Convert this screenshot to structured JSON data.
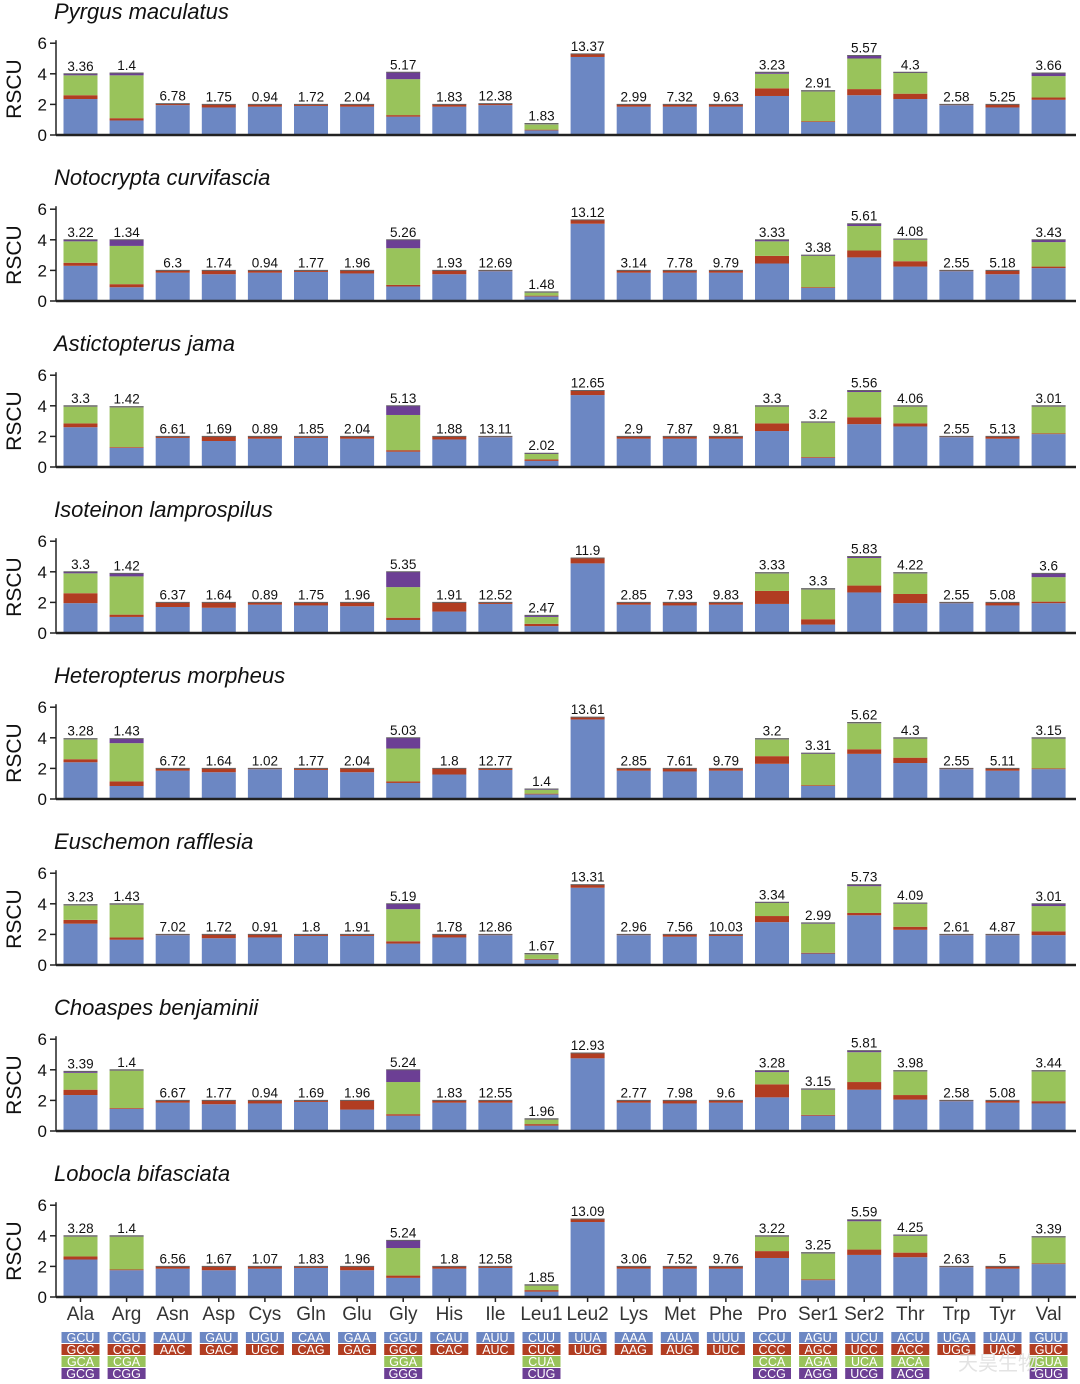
{
  "chart_data": {
    "type": "bar",
    "stacked": true,
    "ylabel": "RSCU",
    "ylim": [
      0,
      6
    ],
    "yticks": [
      0,
      2,
      4,
      6
    ],
    "categories": [
      "Ala",
      "Arg",
      "Asn",
      "Asp",
      "Cys",
      "Gln",
      "Glu",
      "Gly",
      "His",
      "Ile",
      "Leu1",
      "Leu2",
      "Lys",
      "Met",
      "Phe",
      "Pro",
      "Ser1",
      "Ser2",
      "Thr",
      "Trp",
      "Tyr",
      "Val"
    ],
    "colors": [
      "#6c87c3",
      "#b13d22",
      "#99c35b",
      "#6c3f94"
    ],
    "codon_legend": [
      [
        "GCU",
        "GCC",
        "GCA",
        "GCG"
      ],
      [
        "CGU",
        "CGC",
        "CGA",
        "CGG"
      ],
      [
        "AAU",
        "AAC"
      ],
      [
        "GAU",
        "GAC"
      ],
      [
        "UGU",
        "UGC"
      ],
      [
        "CAA",
        "CAG"
      ],
      [
        "GAA",
        "GAG"
      ],
      [
        "GGU",
        "GGC",
        "GGA",
        "GGG"
      ],
      [
        "CAU",
        "CAC"
      ],
      [
        "AUU",
        "AUC"
      ],
      [
        "CUU",
        "CUC",
        "CUA",
        "CUG"
      ],
      [
        "UUA",
        "UUG"
      ],
      [
        "AAA",
        "AAG"
      ],
      [
        "AUA",
        "AUG"
      ],
      [
        "UUU",
        "UUC"
      ],
      [
        "CCU",
        "CCC",
        "CCA",
        "CCG"
      ],
      [
        "AGU",
        "AGC",
        "AGA",
        "AGG"
      ],
      [
        "UCU",
        "UCC",
        "UCA",
        "UCG"
      ],
      [
        "ACU",
        "ACC",
        "ACA",
        "ACG"
      ],
      [
        "UGA",
        "UGG"
      ],
      [
        "UAU",
        "UAC"
      ],
      [
        "GUU",
        "GUC",
        "GUA",
        "GUG"
      ]
    ],
    "panels": [
      {
        "title": "Pyrgus maculatus",
        "labels": [
          "3.36",
          "1.4",
          "6.78",
          "1.75",
          "0.94",
          "1.72",
          "2.04",
          "5.17",
          "1.83",
          "12.38",
          "1.83",
          "13.37",
          "2.99",
          "7.32",
          "9.63",
          "3.23",
          "2.91",
          "5.57",
          "4.3",
          "2.58",
          "5.25",
          "3.66"
        ],
        "stacks": [
          [
            2.35,
            0.25,
            1.3,
            0.1
          ],
          [
            0.95,
            0.15,
            2.8,
            0.15
          ],
          [
            1.95,
            0.1
          ],
          [
            1.8,
            0.2
          ],
          [
            1.85,
            0.15
          ],
          [
            1.9,
            0.1
          ],
          [
            1.85,
            0.15
          ],
          [
            1.2,
            0.1,
            2.35,
            0.45
          ],
          [
            1.85,
            0.15
          ],
          [
            1.95,
            0.1
          ],
          [
            0.3,
            0.05,
            0.35,
            0.05
          ],
          [
            5.1,
            0.2
          ],
          [
            1.85,
            0.15
          ],
          [
            1.85,
            0.15
          ],
          [
            1.85,
            0.15
          ],
          [
            2.55,
            0.5,
            0.95,
            0.1
          ],
          [
            0.85,
            0.05,
            1.95,
            0.05
          ],
          [
            2.6,
            0.4,
            2.0,
            0.2
          ],
          [
            2.35,
            0.35,
            1.35,
            0.05
          ],
          [
            1.95,
            0.05
          ],
          [
            1.8,
            0.2
          ],
          [
            2.3,
            0.15,
            1.4,
            0.2
          ]
        ]
      },
      {
        "title": "Notocrypta curvifascia",
        "labels": [
          "3.22",
          "1.34",
          "6.3",
          "1.74",
          "0.94",
          "1.77",
          "1.96",
          "5.26",
          "1.93",
          "12.69",
          "1.48",
          "13.12",
          "3.14",
          "7.78",
          "9.79",
          "3.33",
          "3.38",
          "5.61",
          "4.08",
          "2.55",
          "5.18",
          "3.43"
        ],
        "stacks": [
          [
            2.3,
            0.2,
            1.4,
            0.1
          ],
          [
            0.9,
            0.2,
            2.5,
            0.4
          ],
          [
            1.85,
            0.15
          ],
          [
            1.75,
            0.25
          ],
          [
            1.85,
            0.15
          ],
          [
            1.9,
            0.1
          ],
          [
            1.8,
            0.2
          ],
          [
            0.95,
            0.1,
            2.4,
            0.55
          ],
          [
            1.75,
            0.25
          ],
          [
            1.95,
            0.05
          ],
          [
            0.3,
            0.05,
            0.2,
            0.05
          ],
          [
            5.05,
            0.25
          ],
          [
            1.85,
            0.15
          ],
          [
            1.85,
            0.15
          ],
          [
            1.85,
            0.15
          ],
          [
            2.45,
            0.5,
            0.95,
            0.1
          ],
          [
            0.85,
            0.05,
            2.05,
            0.05
          ],
          [
            2.85,
            0.45,
            1.6,
            0.15
          ],
          [
            2.25,
            0.35,
            1.4,
            0.05
          ],
          [
            1.95,
            0.05
          ],
          [
            1.75,
            0.25
          ],
          [
            2.15,
            0.1,
            1.6,
            0.15
          ]
        ]
      },
      {
        "title": "Astictopterus jama",
        "labels": [
          "3.3",
          "1.42",
          "6.61",
          "1.69",
          "0.89",
          "1.85",
          "2.04",
          "5.13",
          "1.88",
          "13.11",
          "2.02",
          "12.65",
          "2.9",
          "7.87",
          "9.81",
          "3.3",
          "3.2",
          "5.56",
          "4.06",
          "2.55",
          "5.13",
          "3.01"
        ],
        "stacks": [
          [
            2.6,
            0.25,
            1.1,
            0.05
          ],
          [
            1.25,
            0.05,
            2.6,
            0.05
          ],
          [
            1.9,
            0.1
          ],
          [
            1.7,
            0.3
          ],
          [
            1.85,
            0.15
          ],
          [
            1.9,
            0.1
          ],
          [
            1.85,
            0.15
          ],
          [
            1.0,
            0.1,
            2.3,
            0.6
          ],
          [
            1.8,
            0.2
          ],
          [
            1.95,
            0.05
          ],
          [
            0.4,
            0.1,
            0.35,
            0.05
          ],
          [
            4.7,
            0.3
          ],
          [
            1.85,
            0.15
          ],
          [
            1.85,
            0.15
          ],
          [
            1.85,
            0.15
          ],
          [
            2.35,
            0.5,
            1.1,
            0.05
          ],
          [
            0.6,
            0.05,
            2.25,
            0.05
          ],
          [
            2.8,
            0.45,
            1.65,
            0.1
          ],
          [
            2.65,
            0.2,
            1.1,
            0.05
          ],
          [
            1.95,
            0.05
          ],
          [
            1.85,
            0.15
          ],
          [
            2.15,
            0.05,
            1.75,
            0.05
          ]
        ]
      },
      {
        "title": "Isoteinon lamprospilus",
        "labels": [
          "3.3",
          "1.42",
          "6.37",
          "1.64",
          "0.89",
          "1.75",
          "1.96",
          "5.35",
          "1.91",
          "12.52",
          "2.47",
          "11.9",
          "2.85",
          "7.93",
          "9.83",
          "3.33",
          "3.3",
          "5.83",
          "4.22",
          "2.55",
          "5.08",
          "3.6"
        ],
        "stacks": [
          [
            1.95,
            0.65,
            1.3,
            0.1
          ],
          [
            1.05,
            0.15,
            2.5,
            0.2
          ],
          [
            1.7,
            0.3
          ],
          [
            1.65,
            0.35
          ],
          [
            1.85,
            0.15
          ],
          [
            1.8,
            0.2
          ],
          [
            1.75,
            0.25
          ],
          [
            0.85,
            0.15,
            2.0,
            1.0
          ],
          [
            1.4,
            0.6
          ],
          [
            1.9,
            0.1
          ],
          [
            0.45,
            0.15,
            0.45,
            0.1
          ],
          [
            4.55,
            0.35
          ],
          [
            1.85,
            0.15
          ],
          [
            1.8,
            0.2
          ],
          [
            1.85,
            0.15
          ],
          [
            1.9,
            0.85,
            1.15,
            0.05
          ],
          [
            0.55,
            0.35,
            1.95,
            0.05
          ],
          [
            2.65,
            0.45,
            1.8,
            0.1
          ],
          [
            1.95,
            0.6,
            1.35,
            0.05
          ],
          [
            1.95,
            0.05
          ],
          [
            1.8,
            0.2
          ],
          [
            1.95,
            0.1,
            1.6,
            0.25
          ]
        ]
      },
      {
        "title": "Heteropterus morpheus",
        "labels": [
          "3.28",
          "1.43",
          "6.72",
          "1.64",
          "1.02",
          "1.77",
          "2.04",
          "5.03",
          "1.8",
          "12.77",
          "1.4",
          "13.61",
          "2.85",
          "7.61",
          "9.79",
          "3.2",
          "3.31",
          "5.62",
          "4.3",
          "2.55",
          "5.11",
          "3.15"
        ],
        "stacks": [
          [
            2.4,
            0.2,
            1.3,
            0.05
          ],
          [
            0.85,
            0.3,
            2.5,
            0.3
          ],
          [
            1.85,
            0.15
          ],
          [
            1.75,
            0.25
          ],
          [
            1.95,
            0.05
          ],
          [
            1.9,
            0.1
          ],
          [
            1.75,
            0.25
          ],
          [
            1.05,
            0.1,
            2.15,
            0.7
          ],
          [
            1.6,
            0.4
          ],
          [
            1.9,
            0.1
          ],
          [
            0.3,
            0.05,
            0.25,
            0.05
          ],
          [
            5.2,
            0.15
          ],
          [
            1.85,
            0.15
          ],
          [
            1.8,
            0.2
          ],
          [
            1.85,
            0.15
          ],
          [
            2.3,
            0.5,
            1.1,
            0.05
          ],
          [
            0.85,
            0.05,
            2.05,
            0.05
          ],
          [
            2.95,
            0.3,
            1.7,
            0.05
          ],
          [
            2.35,
            0.35,
            1.25,
            0.05
          ],
          [
            1.95,
            0.05
          ],
          [
            1.85,
            0.15
          ],
          [
            1.95,
            0.05,
            1.95,
            0.05
          ]
        ]
      },
      {
        "title": "Euschemon rafflesia",
        "labels": [
          "3.23",
          "1.43",
          "7.02",
          "1.72",
          "0.91",
          "1.8",
          "1.91",
          "5.19",
          "1.78",
          "12.86",
          "1.67",
          "13.31",
          "2.96",
          "7.56",
          "10.03",
          "3.34",
          "2.99",
          "5.73",
          "4.09",
          "2.61",
          "4.87",
          "3.01"
        ],
        "stacks": [
          [
            2.7,
            0.25,
            0.95,
            0.05
          ],
          [
            1.65,
            0.15,
            2.15,
            0.05
          ],
          [
            1.95,
            0.05
          ],
          [
            1.75,
            0.25
          ],
          [
            1.8,
            0.2
          ],
          [
            1.9,
            0.1
          ],
          [
            1.9,
            0.1
          ],
          [
            1.4,
            0.15,
            2.1,
            0.35
          ],
          [
            1.8,
            0.2
          ],
          [
            1.95,
            0.05
          ],
          [
            0.35,
            0.05,
            0.3,
            0.05
          ],
          [
            5.05,
            0.2
          ],
          [
            1.95,
            0.05
          ],
          [
            1.85,
            0.15
          ],
          [
            1.9,
            0.1
          ],
          [
            2.8,
            0.4,
            0.85,
            0.05
          ],
          [
            0.75,
            0.05,
            1.9,
            0.05
          ],
          [
            3.25,
            0.15,
            1.75,
            0.1
          ],
          [
            2.3,
            0.2,
            1.5,
            0.05
          ],
          [
            1.95,
            0.05
          ],
          [
            1.95,
            0.05
          ],
          [
            1.95,
            0.25,
            1.65,
            0.15
          ]
        ]
      },
      {
        "title": "Choaspes benjaminii",
        "labels": [
          "3.39",
          "1.4",
          "6.67",
          "1.77",
          "0.94",
          "1.69",
          "1.96",
          "5.24",
          "1.83",
          "12.55",
          "1.96",
          "12.93",
          "2.77",
          "7.98",
          "9.6",
          "3.28",
          "3.15",
          "5.81",
          "3.98",
          "2.58",
          "5.08",
          "3.44"
        ],
        "stacks": [
          [
            2.35,
            0.35,
            1.1,
            0.1
          ],
          [
            1.45,
            0.05,
            2.45,
            0.05
          ],
          [
            1.85,
            0.15
          ],
          [
            1.75,
            0.25
          ],
          [
            1.8,
            0.2
          ],
          [
            1.9,
            0.1
          ],
          [
            1.4,
            0.6
          ],
          [
            1.0,
            0.1,
            2.1,
            0.8
          ],
          [
            1.85,
            0.15
          ],
          [
            1.85,
            0.15
          ],
          [
            0.35,
            0.1,
            0.3,
            0.05
          ],
          [
            4.75,
            0.35
          ],
          [
            1.85,
            0.15
          ],
          [
            1.8,
            0.2
          ],
          [
            1.85,
            0.15
          ],
          [
            2.2,
            0.85,
            0.8,
            0.1
          ],
          [
            1.0,
            0.05,
            1.65,
            0.05
          ],
          [
            2.7,
            0.5,
            1.95,
            0.1
          ],
          [
            2.05,
            0.3,
            1.55,
            0.05
          ],
          [
            1.95,
            0.05
          ],
          [
            1.85,
            0.15
          ],
          [
            1.8,
            0.15,
            1.95,
            0.05
          ]
        ]
      },
      {
        "title": "Lobocla bifasciata",
        "labels": [
          "3.28",
          "1.4",
          "6.56",
          "1.67",
          "1.07",
          "1.83",
          "1.96",
          "5.24",
          "1.8",
          "12.58",
          "1.85",
          "13.09",
          "3.06",
          "7.52",
          "9.76",
          "3.22",
          "3.25",
          "5.59",
          "4.25",
          "2.63",
          "5",
          "3.39"
        ],
        "stacks": [
          [
            2.45,
            0.2,
            1.3,
            0.05
          ],
          [
            1.75,
            0.05,
            2.15,
            0.05
          ],
          [
            1.85,
            0.15
          ],
          [
            1.75,
            0.25
          ],
          [
            1.85,
            0.15
          ],
          [
            1.9,
            0.1
          ],
          [
            1.75,
            0.25
          ],
          [
            1.25,
            0.15,
            1.8,
            0.5
          ],
          [
            1.85,
            0.15
          ],
          [
            1.9,
            0.1
          ],
          [
            0.35,
            0.1,
            0.3,
            0.05
          ],
          [
            4.9,
            0.2
          ],
          [
            1.85,
            0.15
          ],
          [
            1.85,
            0.15
          ],
          [
            1.85,
            0.15
          ],
          [
            2.55,
            0.45,
            0.95,
            0.05
          ],
          [
            1.1,
            0.05,
            1.7,
            0.05
          ],
          [
            2.75,
            0.35,
            1.85,
            0.1
          ],
          [
            2.6,
            0.3,
            1.1,
            0.05
          ],
          [
            1.95,
            0.05
          ],
          [
            1.85,
            0.15
          ],
          [
            2.15,
            0.05,
            1.7,
            0.05
          ]
        ]
      }
    ]
  },
  "watermark": "天昊生物"
}
